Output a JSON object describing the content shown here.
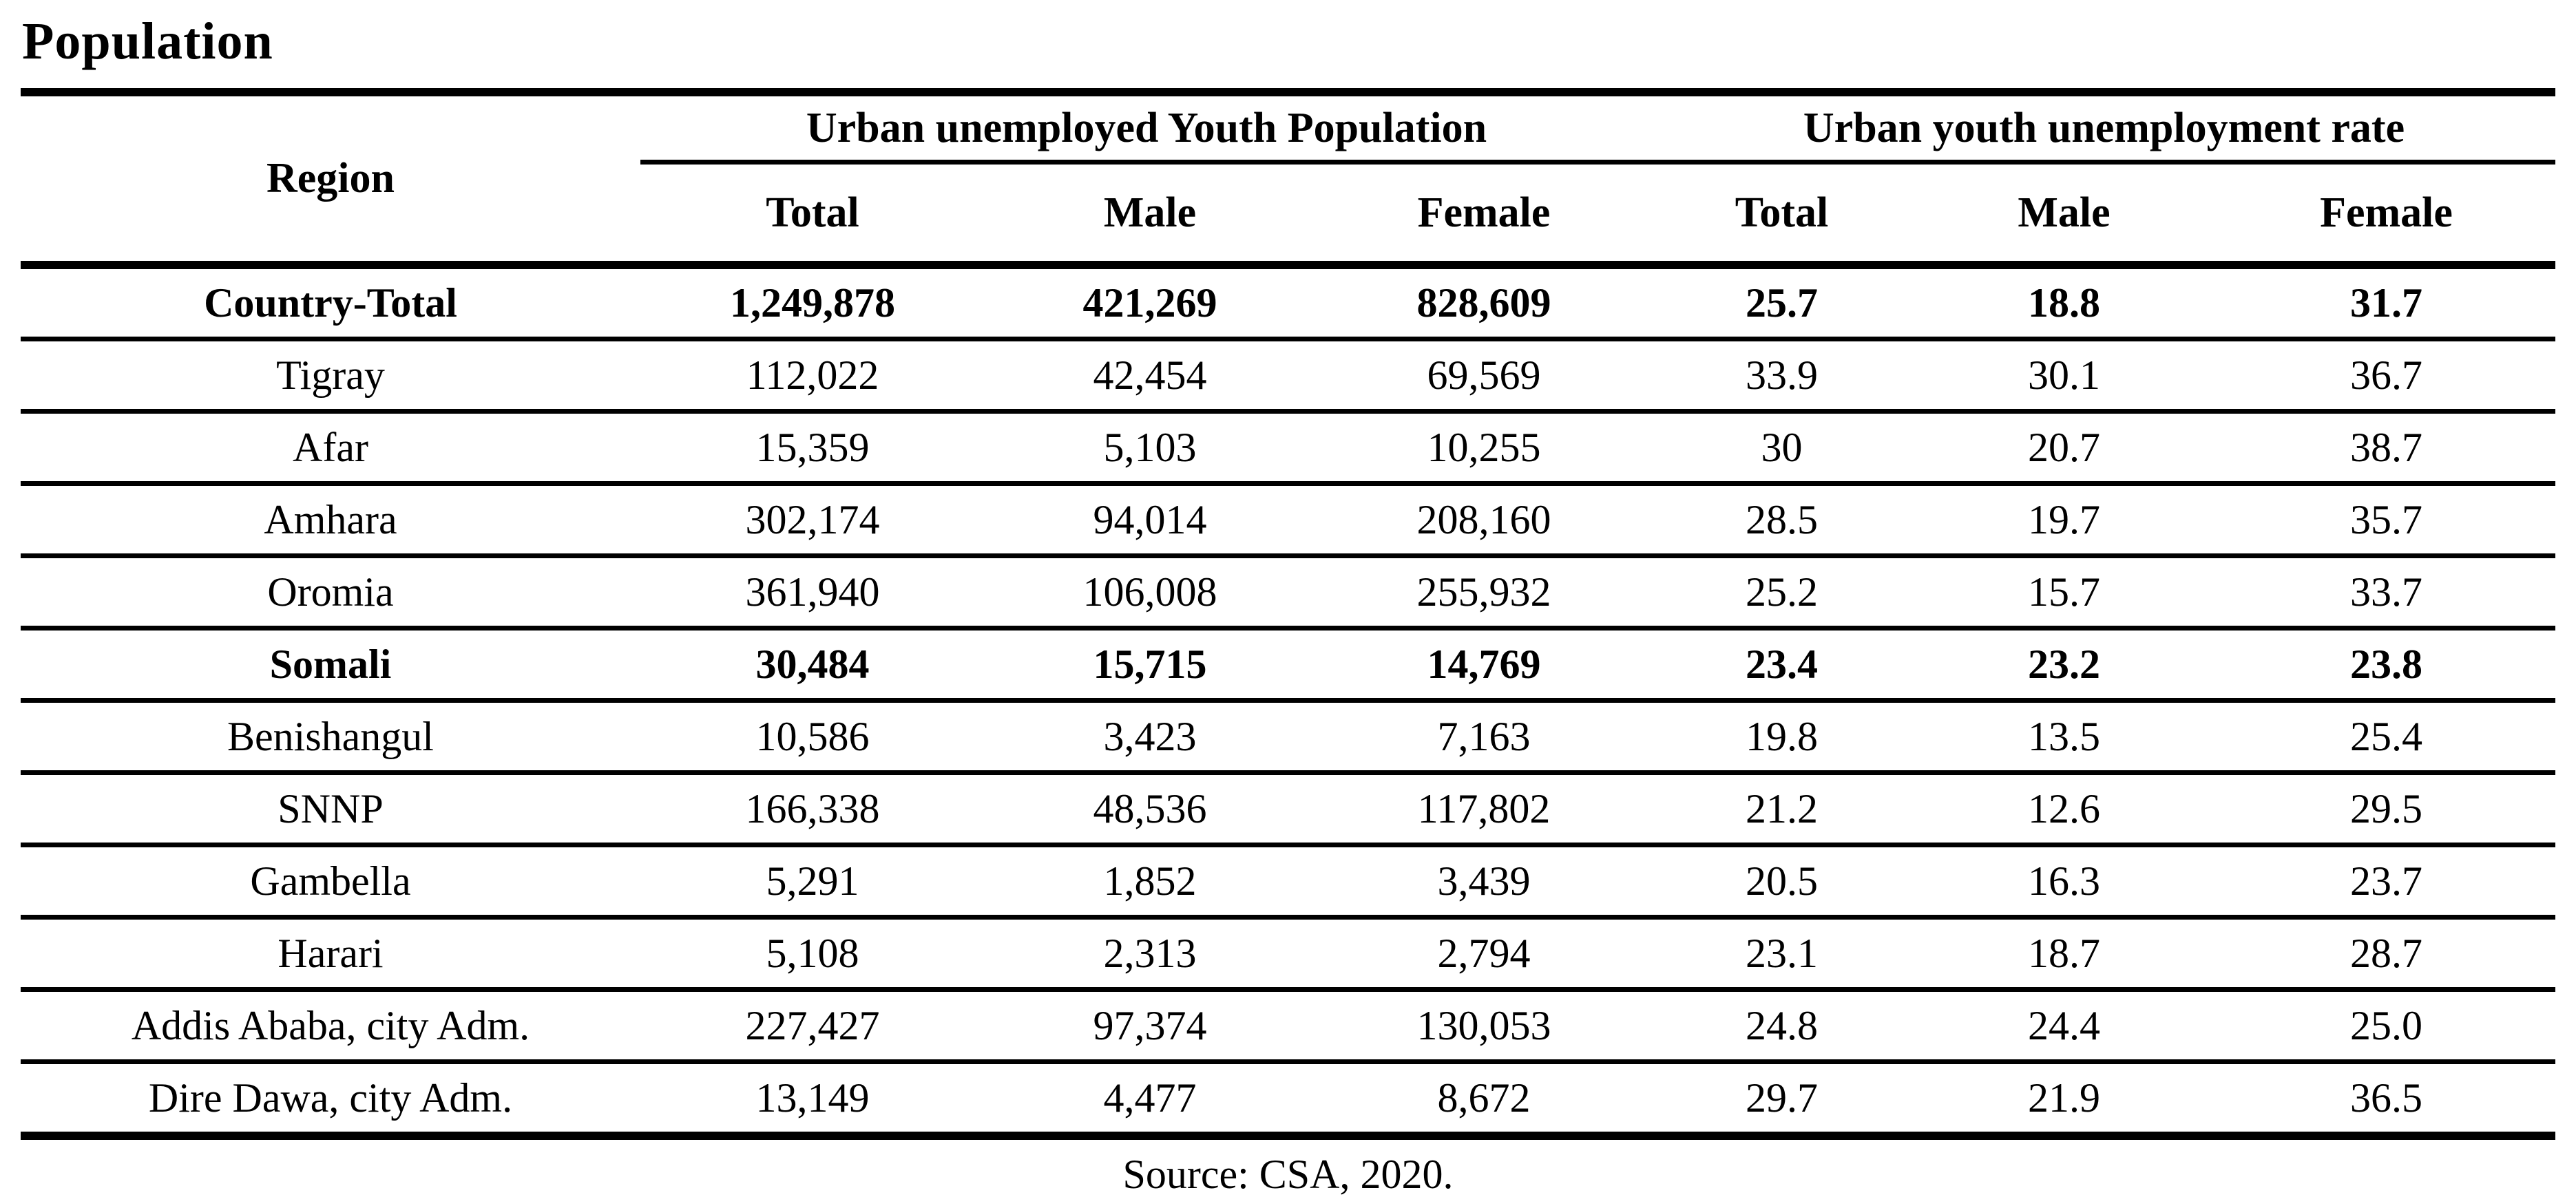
{
  "page_title": "Population",
  "table": {
    "region_header": "Region",
    "group_headers": [
      {
        "label": "Urban unemployed Youth Population",
        "sub": [
          "Total",
          "Male",
          "Female"
        ]
      },
      {
        "label": "Urban youth unemployment rate",
        "sub": [
          "Total",
          "Male",
          "Female"
        ]
      }
    ],
    "rows": [
      {
        "region": "Country-Total",
        "bold": true,
        "values": [
          "1,249,878",
          "421,269",
          "828,609",
          "25.7",
          "18.8",
          "31.7"
        ]
      },
      {
        "region": "Tigray",
        "bold": false,
        "values": [
          "112,022",
          "42,454",
          "69,569",
          "33.9",
          "30.1",
          "36.7"
        ]
      },
      {
        "region": "Afar",
        "bold": false,
        "values": [
          "15,359",
          "5,103",
          "10,255",
          "30",
          "20.7",
          "38.7"
        ]
      },
      {
        "region": "Amhara",
        "bold": false,
        "values": [
          "302,174",
          "94,014",
          "208,160",
          "28.5",
          "19.7",
          "35.7"
        ]
      },
      {
        "region": "Oromia",
        "bold": false,
        "values": [
          "361,940",
          "106,008",
          "255,932",
          "25.2",
          "15.7",
          "33.7"
        ]
      },
      {
        "region": "Somali",
        "bold": true,
        "values": [
          "30,484",
          "15,715",
          "14,769",
          "23.4",
          "23.2",
          "23.8"
        ]
      },
      {
        "region": "Benishangul",
        "bold": false,
        "values": [
          "10,586",
          "3,423",
          "7,163",
          "19.8",
          "13.5",
          "25.4"
        ]
      },
      {
        "region": "SNNP",
        "bold": false,
        "values": [
          "166,338",
          "48,536",
          "117,802",
          "21.2",
          "12.6",
          "29.5"
        ]
      },
      {
        "region": "Gambella",
        "bold": false,
        "values": [
          "5,291",
          "1,852",
          "3,439",
          "20.5",
          "16.3",
          "23.7"
        ]
      },
      {
        "region": "Harari",
        "bold": false,
        "values": [
          "5,108",
          "2,313",
          "2,794",
          "23.1",
          "18.7",
          "28.7"
        ]
      },
      {
        "region": "Addis Ababa, city Adm.",
        "bold": false,
        "values": [
          "227,427",
          "97,374",
          "130,053",
          "24.8",
          "24.4",
          "25.0"
        ]
      },
      {
        "region": "Dire Dawa, city Adm.",
        "bold": false,
        "values": [
          "13,149",
          "4,477",
          "8,672",
          "29.7",
          "21.9",
          "36.5"
        ]
      }
    ]
  },
  "source_note": "Source: CSA, 2020."
}
